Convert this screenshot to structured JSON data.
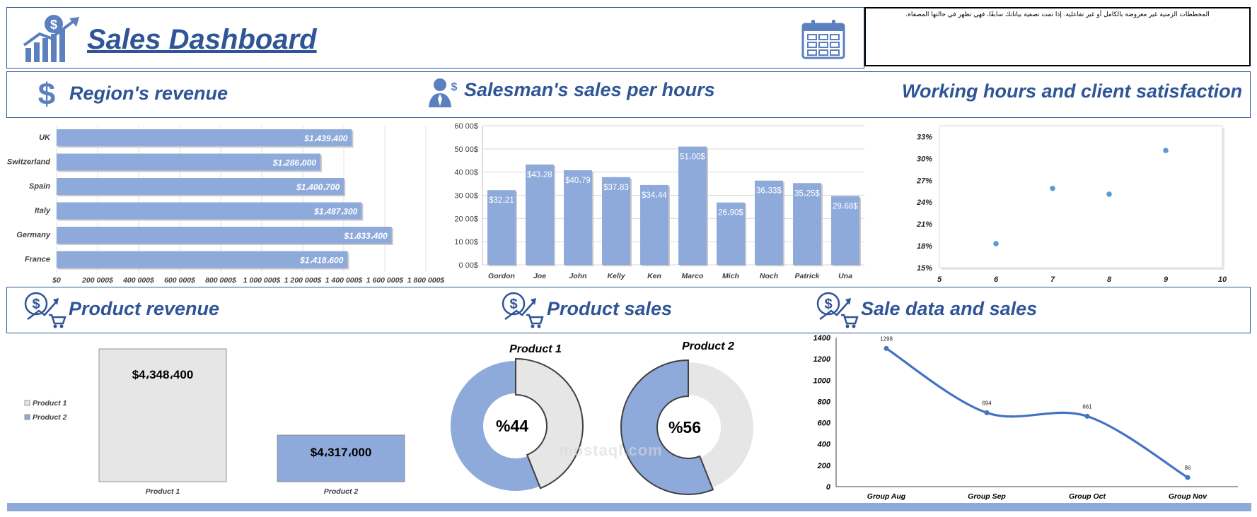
{
  "header": {
    "title": "Sales Dashboard",
    "notice": "المخططات الزمنية غير معروضة بالكامل أو غير تفاعلية. إذا تمت تصفية بياناتك سابقًا، فهي تظهر في حالتها المصفاة."
  },
  "sections": {
    "region": "Region's revenue",
    "salesman": "Salesman's sales per hours",
    "working": "Working hours and client satisfaction",
    "product_revenue": "Product revenue",
    "product_sales": "Product sales",
    "sale_data": "Sale data and sales"
  },
  "watermark": "mostaql.com",
  "colors": {
    "accent": "#2f5597",
    "bar": "#8eaadb",
    "light": "#e7e6e6"
  },
  "icons": [
    "dollar-chart-icon",
    "calendar-icon",
    "dollar-icon",
    "salesman-icon",
    "product-cart-icon"
  ],
  "chart_data": [
    {
      "id": "region",
      "type": "bar",
      "orientation": "horizontal",
      "categories": [
        "UK",
        "Switzerland",
        "Spain",
        "Italy",
        "Germany",
        "France"
      ],
      "values": [
        1439400,
        1286000,
        1400700,
        1487300,
        1633400,
        1418600
      ],
      "data_labels": [
        "$1،439،400",
        "$1،286،000",
        "$1،400،700",
        "$1،487،300",
        "$1،633،400",
        "$1،418،600"
      ],
      "xlim": [
        0,
        1800000
      ],
      "x_ticks": [
        "$0",
        "200 000$",
        "400 000$",
        "600 000$",
        "800 000$",
        "1 000 000$",
        "1 200 000$",
        "1 400 000$",
        "1 600 000$",
        "1 800 000$"
      ]
    },
    {
      "id": "salesman",
      "type": "bar",
      "categories": [
        "Gordon",
        "Joe",
        "John",
        "Kelly",
        "Ken",
        "Marco",
        "Mich",
        "Noch",
        "Patrick",
        "Una"
      ],
      "values": [
        32.21,
        43.28,
        40.79,
        37.83,
        34.44,
        51.0,
        26.9,
        36.33,
        35.25,
        29.68
      ],
      "data_labels": [
        "$32،21",
        "$43،28",
        "$40،79",
        "$37،83",
        "$34،44",
        "51،00$",
        "26،90$",
        "36،33$",
        "35،25$",
        "29،68$"
      ],
      "ylim": [
        0,
        60
      ],
      "y_ticks": [
        "0 00$",
        "10 00$",
        "20 00$",
        "30 00$",
        "40 00$",
        "50 00$",
        "60 00$"
      ]
    },
    {
      "id": "working",
      "type": "scatter",
      "x": [
        6,
        7,
        8,
        9
      ],
      "y": [
        18.3,
        25.9,
        25.1,
        31.1
      ],
      "xlim": [
        5,
        10
      ],
      "ylim": [
        15,
        34.5
      ],
      "x_ticks": [
        "5",
        "6",
        "7",
        "8",
        "9",
        "10"
      ],
      "y_ticks": [
        "15%",
        "18%",
        "21%",
        "24%",
        "27%",
        "30%",
        "33%"
      ]
    },
    {
      "id": "product_revenue",
      "type": "bar",
      "categories": [
        "Product 1",
        "Product 2"
      ],
      "values": [
        4348400,
        4317000
      ],
      "data_labels": [
        "$4،348،400",
        "$4،317،000"
      ],
      "legend": [
        "Product 1",
        "Product 2"
      ],
      "legend_position": "left"
    },
    {
      "id": "product_sales",
      "type": "pie",
      "donuts": [
        {
          "title": "Product 1",
          "highlight": 44,
          "label": "%44"
        },
        {
          "title": "Product 2",
          "highlight": 56,
          "label": "%56"
        }
      ]
    },
    {
      "id": "sale_data",
      "type": "line",
      "categories": [
        "Group Aug",
        "Group Sep",
        "Group Oct",
        "Group Nov"
      ],
      "values": [
        1298,
        694,
        661,
        86
      ],
      "ylim": [
        0,
        1400
      ],
      "y_ticks": [
        "0",
        "200",
        "400",
        "600",
        "800",
        "1000",
        "1200",
        "1400"
      ]
    }
  ]
}
